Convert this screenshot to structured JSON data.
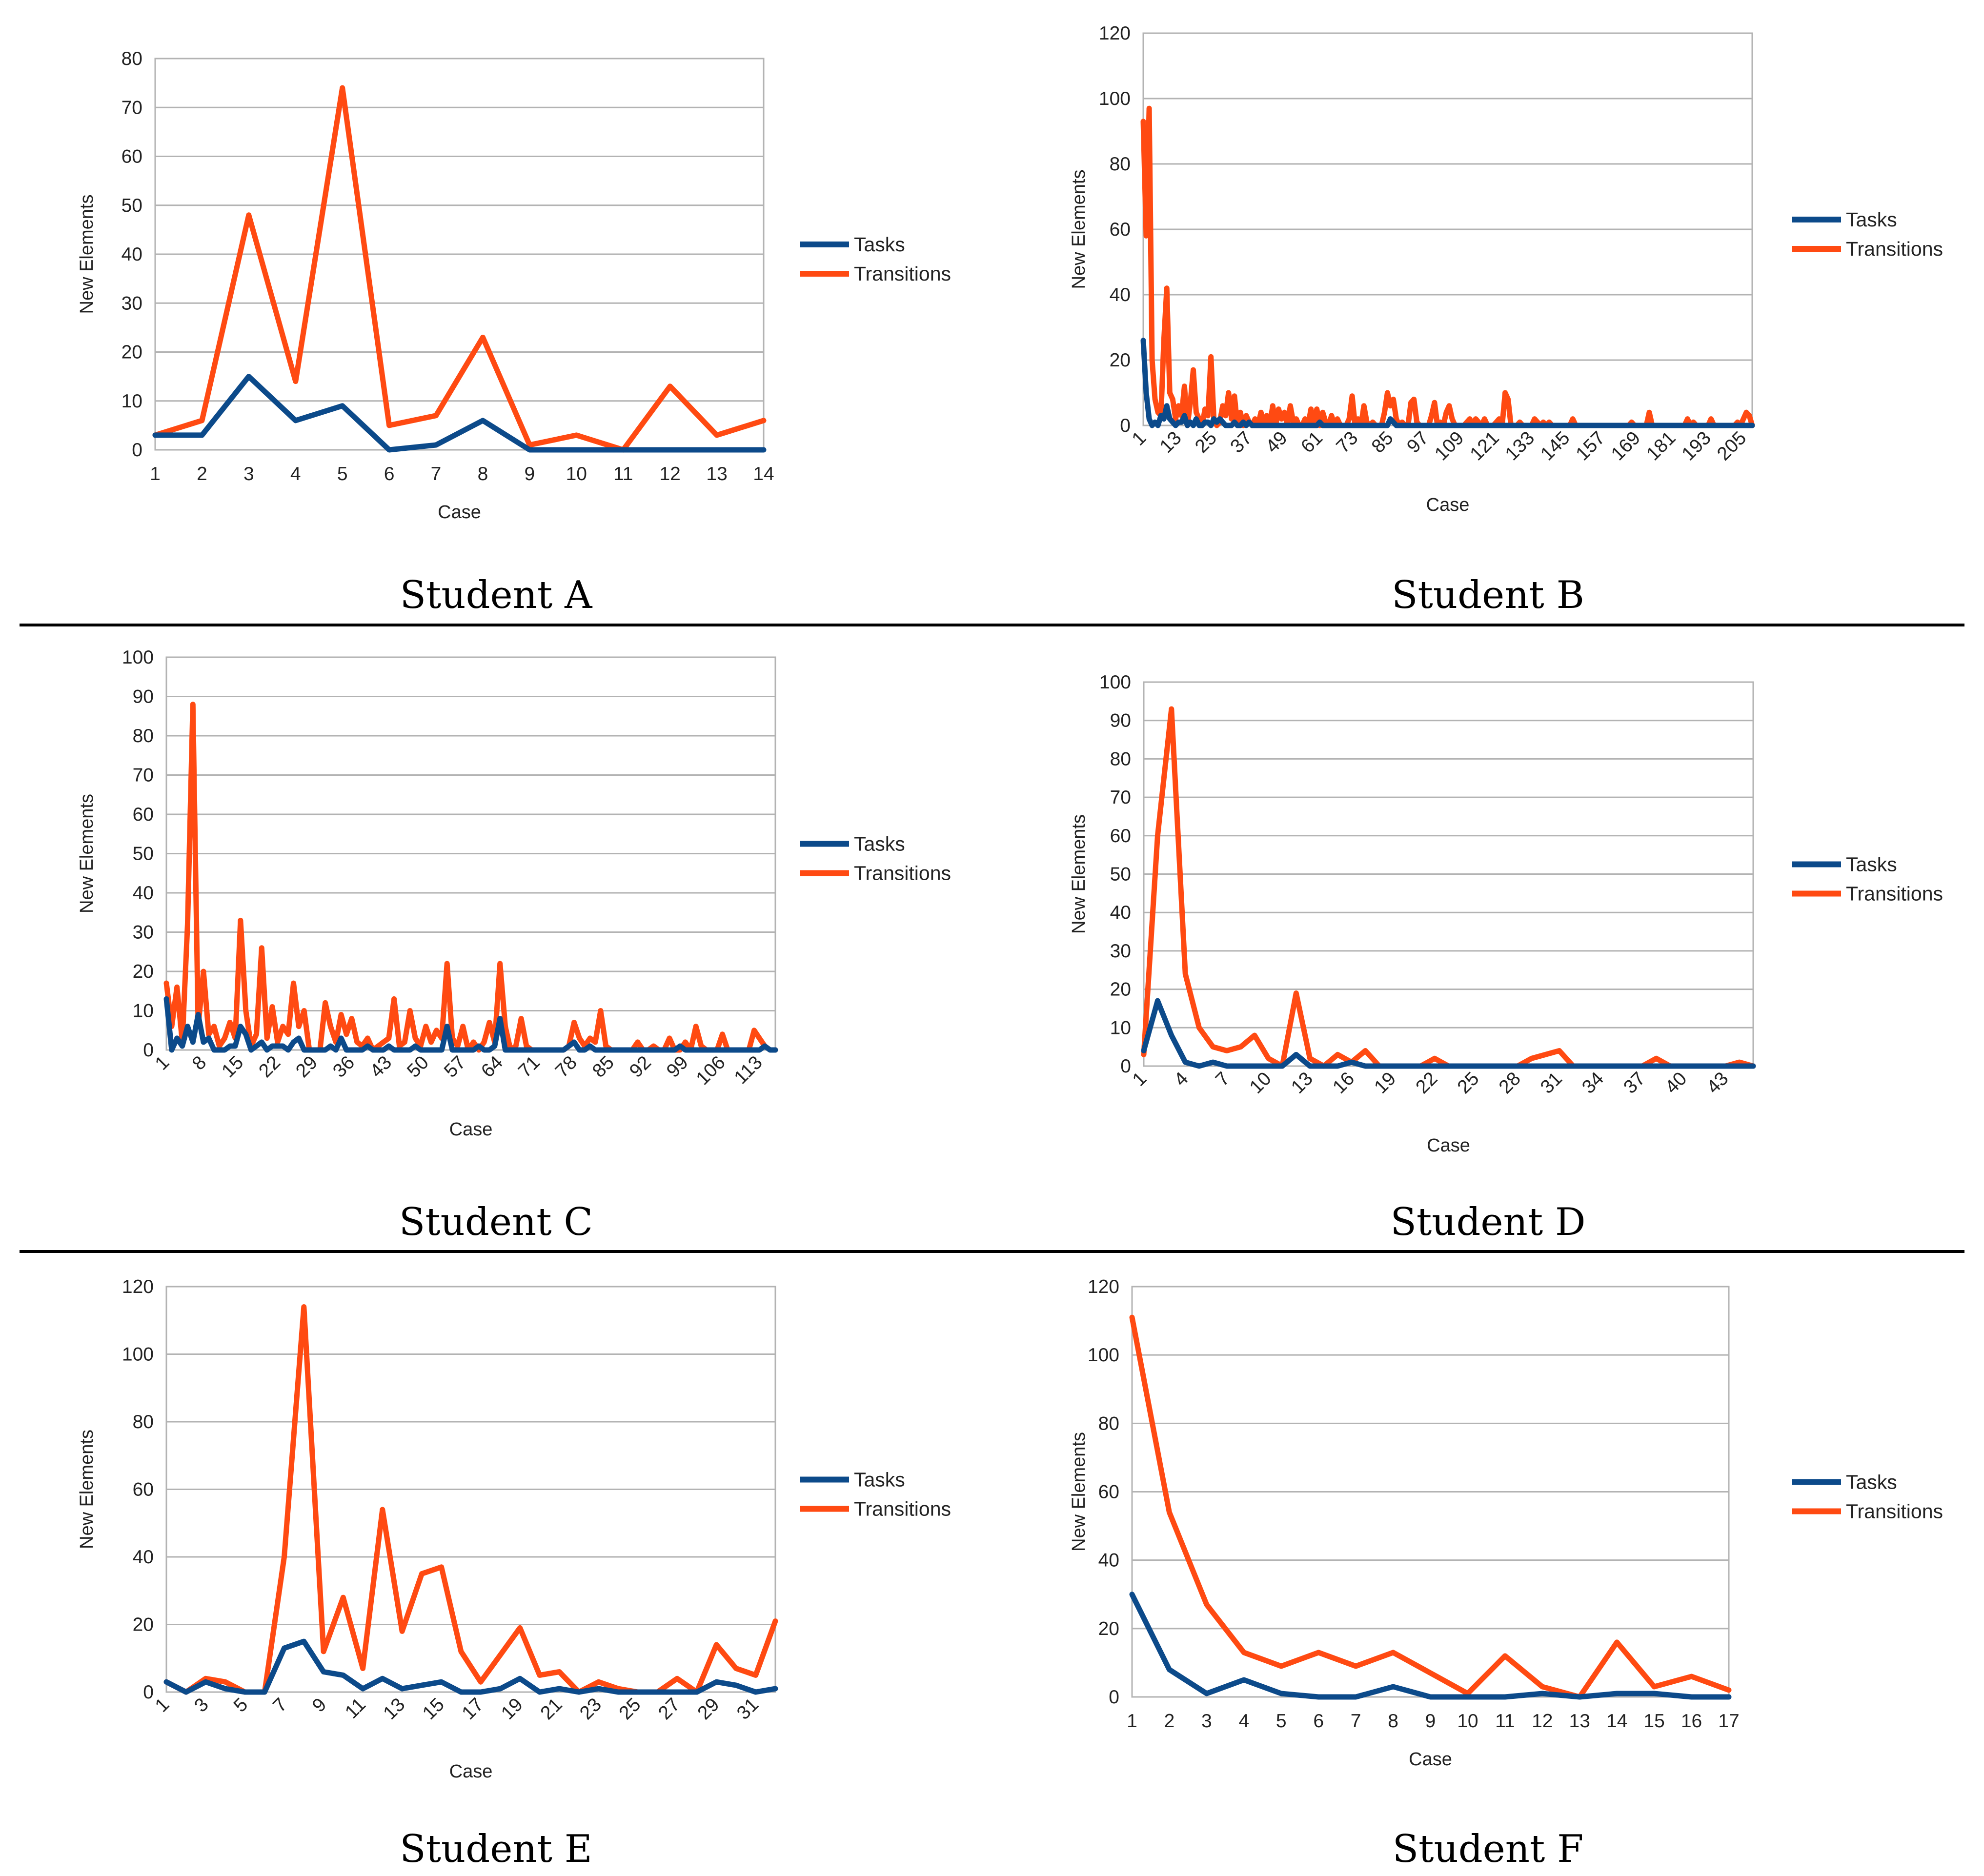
{
  "colors": {
    "tasks": "#0c4a8a",
    "transitions": "#ff4a12",
    "grid": "#b3b3b3"
  },
  "chart_data": [
    {
      "type": "line",
      "title": "Student A",
      "xlabel": "Case",
      "ylabel": "New Elements",
      "ylim": [
        0,
        80
      ],
      "ystep": 10,
      "n": 14,
      "labelStep": 1,
      "rotated": false,
      "series": [
        {
          "name": "Tasks",
          "values": [
            3,
            3,
            15,
            6,
            9,
            0,
            1,
            6,
            0,
            0,
            0,
            0,
            0,
            0
          ]
        },
        {
          "name": "Transitions",
          "values": [
            3,
            6,
            48,
            14,
            74,
            5,
            7,
            23,
            1,
            3,
            0,
            13,
            3,
            6
          ]
        }
      ]
    },
    {
      "type": "line",
      "title": "Student B",
      "xlabel": "Case",
      "ylabel": "New Elements",
      "ylim": [
        0,
        120
      ],
      "ystep": 20,
      "n": 208,
      "labelStep": 12,
      "rotated": true,
      "series": [
        {
          "name": "Tasks",
          "values": [
            26,
            10,
            2,
            0,
            1,
            0,
            3,
            2,
            6,
            2,
            1,
            0,
            1,
            1,
            3,
            0,
            1,
            0,
            2,
            0,
            0,
            1,
            1,
            0,
            2,
            1,
            2,
            1,
            0,
            0,
            0,
            1,
            0,
            0,
            1,
            0,
            1,
            0,
            0,
            0,
            0,
            0,
            0,
            0,
            0,
            0,
            0,
            0,
            0,
            0,
            0,
            0,
            0,
            0,
            0,
            0,
            0,
            0,
            0,
            0,
            1,
            0,
            0,
            0,
            0,
            0,
            0,
            0,
            0,
            0,
            0,
            0,
            0,
            0,
            0,
            0,
            0,
            0,
            0,
            0,
            0,
            0,
            0,
            0,
            2,
            1,
            0,
            0,
            0,
            0,
            0,
            0,
            0,
            0,
            0,
            0,
            0,
            0,
            0,
            0,
            0,
            0,
            0,
            0,
            0,
            0,
            0,
            0,
            0,
            0,
            0,
            0,
            0,
            0,
            0,
            0,
            0,
            0,
            0,
            0,
            0,
            0,
            0,
            0,
            0,
            0,
            0,
            0,
            0,
            0,
            0,
            0,
            0,
            0,
            0,
            0,
            0,
            0,
            0,
            0,
            0,
            0,
            0,
            0,
            0,
            0,
            0,
            0,
            0,
            0,
            0,
            0,
            0,
            0,
            0,
            0,
            0,
            0,
            0,
            0,
            0,
            0,
            0,
            0,
            0,
            0,
            0,
            0,
            0,
            0,
            0,
            0,
            0,
            0,
            0,
            0,
            0,
            0,
            0,
            0,
            0,
            0,
            0,
            0,
            0,
            0,
            0,
            0,
            0,
            0,
            0,
            0,
            0,
            0,
            0,
            0,
            0,
            0,
            0,
            0,
            0,
            0,
            0,
            0,
            0,
            0,
            0,
            0
          ]
        },
        {
          "name": "Transitions",
          "values": [
            93,
            58,
            97,
            20,
            8,
            4,
            3,
            26,
            42,
            10,
            8,
            2,
            6,
            3,
            12,
            0,
            7,
            17,
            4,
            2,
            0,
            5,
            3,
            21,
            2,
            0,
            1,
            6,
            3,
            10,
            2,
            9,
            0,
            4,
            0,
            3,
            1,
            0,
            2,
            0,
            4,
            1,
            3,
            0,
            6,
            0,
            5,
            2,
            4,
            0,
            6,
            1,
            2,
            0,
            0,
            2,
            0,
            5,
            0,
            5,
            0,
            4,
            1,
            0,
            3,
            0,
            2,
            0,
            0,
            0,
            2,
            9,
            0,
            2,
            0,
            6,
            1,
            0,
            1,
            0,
            0,
            0,
            4,
            10,
            6,
            8,
            2,
            0,
            1,
            0,
            0,
            7,
            8,
            1,
            0,
            0,
            0,
            0,
            3,
            7,
            0,
            1,
            0,
            4,
            6,
            2,
            0,
            0,
            0,
            0,
            1,
            2,
            0,
            2,
            1,
            0,
            2,
            0,
            0,
            0,
            1,
            2,
            0,
            10,
            8,
            0,
            0,
            0,
            1,
            0,
            0,
            0,
            0,
            2,
            1,
            0,
            1,
            0,
            1,
            0,
            0,
            0,
            0,
            0,
            0,
            0,
            2,
            0,
            0,
            0,
            0,
            0,
            0,
            0,
            0,
            0,
            0,
            0,
            0,
            0,
            0,
            0,
            0,
            0,
            0,
            0,
            1,
            0,
            0,
            0,
            0,
            0,
            4,
            0,
            0,
            0,
            0,
            0,
            0,
            0,
            0,
            0,
            0,
            0,
            0,
            2,
            0,
            1,
            0,
            0,
            0,
            0,
            0,
            2,
            0,
            0,
            0,
            0,
            0,
            0,
            0,
            0,
            1,
            0,
            2,
            4,
            3,
            0
          ]
        }
      ]
    },
    {
      "type": "line",
      "title": "Student C",
      "xlabel": "Case",
      "ylabel": "New Elements",
      "ylim": [
        0,
        100
      ],
      "ystep": 10,
      "n": 116,
      "labelStep": 7,
      "rotated": true,
      "series": [
        {
          "name": "Tasks",
          "values": [
            13,
            0,
            3,
            1,
            6,
            2,
            9,
            2,
            3,
            0,
            0,
            0,
            1,
            1,
            6,
            4,
            0,
            1,
            2,
            0,
            1,
            1,
            1,
            0,
            2,
            3,
            0,
            0,
            0,
            0,
            0,
            1,
            0,
            3,
            0,
            0,
            0,
            0,
            1,
            0,
            0,
            0,
            1,
            0,
            0,
            0,
            0,
            1,
            0,
            0,
            0,
            0,
            0,
            6,
            0,
            0,
            0,
            0,
            0,
            1,
            0,
            0,
            1,
            8,
            0,
            0,
            0,
            0,
            0,
            0,
            0,
            0,
            0,
            0,
            0,
            0,
            1,
            2,
            0,
            0,
            1,
            0,
            0,
            0,
            0,
            0,
            0,
            0,
            0,
            0,
            0,
            0,
            0,
            0,
            0,
            0,
            0,
            1,
            0,
            0,
            0,
            0,
            0,
            0,
            0,
            0,
            0,
            0,
            0,
            0,
            0,
            0,
            0,
            1,
            0,
            0
          ]
        },
        {
          "name": "Transitions",
          "values": [
            17,
            6,
            16,
            2,
            32,
            88,
            6,
            20,
            4,
            6,
            1,
            3,
            7,
            3,
            33,
            10,
            1,
            4,
            26,
            3,
            11,
            2,
            6,
            4,
            17,
            6,
            10,
            0,
            0,
            0,
            12,
            6,
            2,
            9,
            4,
            8,
            2,
            1,
            3,
            0,
            1,
            2,
            3,
            13,
            1,
            2,
            10,
            3,
            1,
            6,
            2,
            5,
            3,
            22,
            3,
            1,
            6,
            0,
            2,
            0,
            2,
            7,
            2,
            22,
            6,
            0,
            1,
            8,
            1,
            0,
            0,
            0,
            0,
            0,
            0,
            0,
            1,
            7,
            3,
            1,
            3,
            2,
            10,
            1,
            0,
            0,
            0,
            0,
            0,
            2,
            0,
            0,
            1,
            0,
            0,
            3,
            0,
            0,
            2,
            0,
            6,
            1,
            0,
            0,
            0,
            4,
            0,
            0,
            0,
            0,
            0,
            5,
            3,
            1,
            0,
            0
          ]
        }
      ]
    },
    {
      "type": "line",
      "title": "Student D",
      "xlabel": "Case",
      "ylabel": "New Elements",
      "ylim": [
        0,
        100
      ],
      "ystep": 10,
      "n": 45,
      "labelStep": 3,
      "rotated": true,
      "series": [
        {
          "name": "Tasks",
          "values": [
            4,
            17,
            8,
            1,
            0,
            1,
            0,
            0,
            0,
            0,
            0,
            3,
            0,
            0,
            0,
            1,
            0,
            0,
            0,
            0,
            0,
            0,
            0,
            0,
            0,
            0,
            0,
            0,
            0,
            0,
            0,
            0,
            0,
            0,
            0,
            0,
            0,
            0,
            0,
            0,
            0,
            0,
            0,
            0,
            0
          ]
        },
        {
          "name": "Transitions",
          "values": [
            3,
            60,
            93,
            24,
            10,
            5,
            4,
            5,
            8,
            2,
            0,
            19,
            2,
            0,
            3,
            1,
            4,
            0,
            0,
            0,
            0,
            2,
            0,
            0,
            0,
            0,
            0,
            0,
            2,
            3,
            4,
            0,
            0,
            0,
            0,
            0,
            0,
            2,
            0,
            0,
            0,
            0,
            0,
            1,
            0
          ]
        }
      ]
    },
    {
      "type": "line",
      "title": "Student E",
      "xlabel": "Case",
      "ylabel": "New Elements",
      "ylim": [
        0,
        120
      ],
      "ystep": 20,
      "n": 32,
      "labelStep": 2,
      "rotated": true,
      "series": [
        {
          "name": "Tasks",
          "values": [
            3,
            0,
            3,
            1,
            0,
            0,
            13,
            15,
            6,
            5,
            1,
            4,
            1,
            2,
            3,
            0,
            0,
            1,
            4,
            0,
            1,
            0,
            1,
            0,
            0,
            0,
            0,
            0,
            3,
            2,
            0,
            1
          ]
        },
        {
          "name": "Transitions",
          "values": [
            3,
            0,
            4,
            3,
            0,
            0,
            40,
            114,
            12,
            28,
            7,
            54,
            18,
            35,
            37,
            12,
            3,
            11,
            19,
            5,
            6,
            0,
            3,
            1,
            0,
            0,
            4,
            0,
            14,
            7,
            5,
            21
          ]
        }
      ]
    },
    {
      "type": "line",
      "title": "Student F",
      "xlabel": "Case",
      "ylabel": "New Elements",
      "ylim": [
        0,
        120
      ],
      "ystep": 20,
      "n": 17,
      "labelStep": 1,
      "rotated": false,
      "series": [
        {
          "name": "Tasks",
          "values": [
            30,
            8,
            1,
            5,
            1,
            0,
            0,
            3,
            0,
            0,
            0,
            1,
            0,
            1,
            1,
            0,
            0
          ]
        },
        {
          "name": "Transitions",
          "values": [
            111,
            54,
            27,
            13,
            9,
            13,
            9,
            13,
            7,
            1,
            12,
            3,
            0,
            16,
            3,
            6,
            2
          ]
        }
      ]
    }
  ]
}
